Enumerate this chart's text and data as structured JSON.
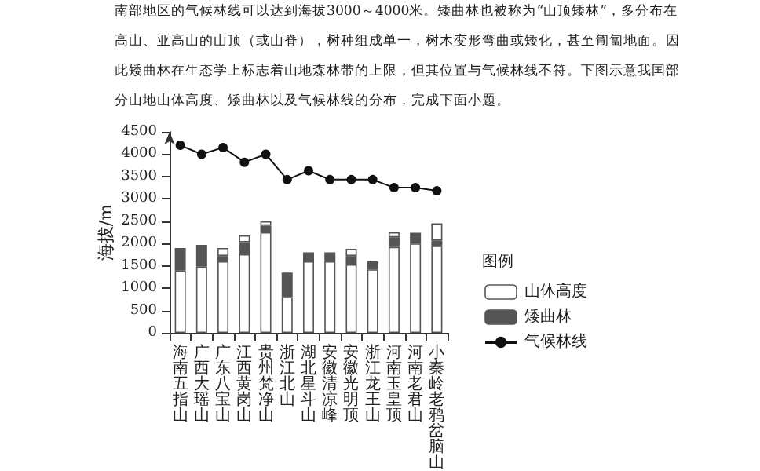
{
  "chart_data": {
    "type": "bar",
    "stacked": true,
    "ylabel": "海拔/m",
    "legend_title": "图例",
    "legend": "right",
    "annotations": [
      "南部地区的气候林线可以达到海拔3000～4000米。矮曲林也被称为“山顶矮林”，多分布在",
      "高山、亚高山的山顶（或山脊），树种组成单一，树木变形弯曲或矮化，甚至匍匐地面。因",
      "此矮曲林在生态学上标志着山地森林带的上限，但其位置与气候林线不符。下图示意我国部",
      "分山地山体高度、矮曲林以及气候林线的分布，完成下面小题。"
    ],
    "categories": [
      "海南五指山",
      "广西大瑶山",
      "广东八宝山",
      "江西黄岗山",
      "贵州梵净山",
      "浙江北山",
      "湖北星斗山",
      "安徽清凉峰",
      "安徽光明顶",
      "浙江龙王山",
      "河南玉皇顶",
      "河南老君山",
      "小秦岭老鸦岔脑山"
    ],
    "ylim": [
      0,
      4500
    ],
    "yticks": [
      0,
      500,
      1000,
      1500,
      2000,
      2500,
      3000,
      3500,
      4000,
      4500
    ],
    "series": [
      {
        "name": "山体高度",
        "color": "#ffffff",
        "values": [
          1400,
          1480,
          1600,
          1760,
          2250,
          800,
          1600,
          1600,
          1530,
          1420,
          1920,
          2000,
          1950
        ]
      },
      {
        "name": "矮曲林",
        "color": "#555555",
        "values": [
          500,
          490,
          120,
          270,
          150,
          550,
          200,
          200,
          190,
          180,
          220,
          240,
          120
        ]
      },
      {
        "color": "#ffffff",
        "values": [
          null,
          null,
          180,
          150,
          100,
          null,
          null,
          null,
          160,
          null,
          110,
          null,
          380
        ]
      },
      {
        "name": "气候林线",
        "type": "line",
        "color": "#111111",
        "marker": "circle",
        "values": [
          4200,
          4000,
          4150,
          3820,
          4000,
          3430,
          3630,
          3430,
          3430,
          3430,
          3250,
          3250,
          3180
        ]
      }
    ]
  }
}
